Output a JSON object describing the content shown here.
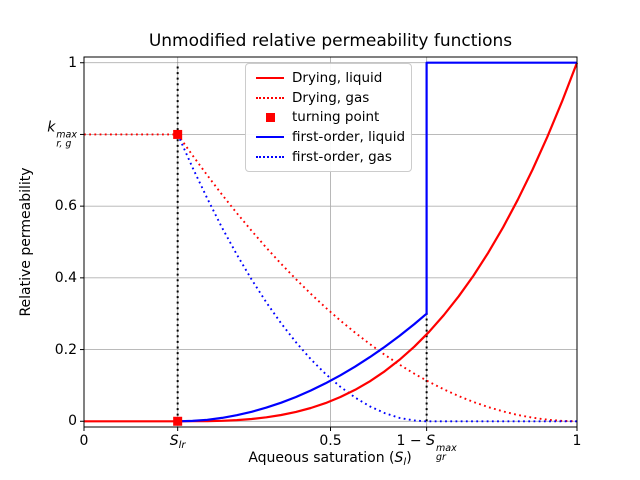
{
  "chart_data": {
    "type": "line",
    "title": "Unmodified relative permeability functions",
    "ylabel": "Relative permeability",
    "xlabel_tokens": [
      {
        "t": "Aqueous saturation ("
      },
      {
        "t": "S",
        "i": true
      },
      {
        "sub": "l"
      },
      {
        "t": ")"
      }
    ],
    "xlim": [
      0,
      1
    ],
    "ylim": [
      -0.016,
      1.016
    ],
    "grid": true,
    "legend_position": "upper center-left inside axes",
    "colors": {
      "drying": "#ff0000",
      "first_order": "#0000ff",
      "grid": "#b0b0b0",
      "guide": "#000000",
      "legend_edge": "#cccccc",
      "spine": "#000000"
    },
    "params": {
      "S_lr": 0.19,
      "one_minus_S_gr_max": 0.695,
      "k_rg_max": 0.8
    },
    "xticks": [
      {
        "v": 0,
        "label": [
          {
            "t": "0"
          }
        ]
      },
      {
        "v": 0.19,
        "label": [
          {
            "t": "S",
            "i": true
          },
          {
            "sub": "lr"
          }
        ]
      },
      {
        "v": 0.5,
        "label": [
          {
            "t": "0.5"
          }
        ]
      },
      {
        "v": 0.695,
        "label": [
          {
            "t": "1 − "
          },
          {
            "t": "S",
            "i": true
          },
          {
            "sup": "max",
            "sub": "gr"
          }
        ]
      },
      {
        "v": 1,
        "label": [
          {
            "t": "1"
          }
        ]
      }
    ],
    "yticks": [
      {
        "v": 0,
        "label": [
          {
            "t": "0"
          }
        ]
      },
      {
        "v": 0.2,
        "label": [
          {
            "t": "0.2"
          }
        ]
      },
      {
        "v": 0.4,
        "label": [
          {
            "t": "0.4"
          }
        ]
      },
      {
        "v": 0.6,
        "label": [
          {
            "t": "0.6"
          }
        ]
      },
      {
        "v": 0.8,
        "label": [
          {
            "t": "k",
            "i": true
          },
          {
            "sup": "max",
            "sub": "r, g"
          }
        ]
      },
      {
        "v": 1,
        "label": [
          {
            "t": "1"
          }
        ]
      }
    ],
    "guides": [
      {
        "x": 0.19,
        "y0": 0,
        "y1": 1.0
      },
      {
        "x": 0.695,
        "y0": 0,
        "y1": 0.305
      }
    ],
    "turning_points": [
      [
        0.19,
        0.8
      ],
      [
        0.19,
        0
      ]
    ],
    "series": [
      {
        "name": "Drying, gas",
        "color": "#ff0000",
        "style": "dotted",
        "points": [
          [
            0,
            0.8
          ],
          [
            0.19,
            0.8
          ],
          [
            0.22,
            0.7418
          ],
          [
            0.25,
            0.6859
          ],
          [
            0.28,
            0.6321
          ],
          [
            0.31,
            0.5805
          ],
          [
            0.34,
            0.5311
          ],
          [
            0.37,
            0.4838
          ],
          [
            0.4,
            0.4389
          ],
          [
            0.43,
            0.3962
          ],
          [
            0.46,
            0.3556
          ],
          [
            0.49,
            0.3171
          ],
          [
            0.52,
            0.2809
          ],
          [
            0.55,
            0.2469
          ],
          [
            0.58,
            0.2151
          ],
          [
            0.61,
            0.1855
          ],
          [
            0.64,
            0.158
          ],
          [
            0.67,
            0.1328
          ],
          [
            0.7,
            0.1097
          ],
          [
            0.73,
            0.0889
          ],
          [
            0.76,
            0.0702
          ],
          [
            0.79,
            0.0538
          ],
          [
            0.82,
            0.0395
          ],
          [
            0.85,
            0.0274
          ],
          [
            0.88,
            0.0176
          ],
          [
            0.91,
            0.0099
          ],
          [
            0.94,
            0.0044
          ],
          [
            0.97,
            0.0011
          ],
          [
            1,
            0
          ]
        ]
      },
      {
        "name": "first-order, gas",
        "color": "#0000ff",
        "style": "dotted",
        "points": [
          [
            0.19,
            0.8
          ],
          [
            0.22,
            0.7078
          ],
          [
            0.25,
            0.6212
          ],
          [
            0.28,
            0.5403
          ],
          [
            0.31,
            0.465
          ],
          [
            0.34,
            0.3953
          ],
          [
            0.37,
            0.3313
          ],
          [
            0.4,
            0.273
          ],
          [
            0.43,
            0.2203
          ],
          [
            0.46,
            0.1732
          ],
          [
            0.49,
            0.1318
          ],
          [
            0.52,
            0.0961
          ],
          [
            0.55,
            0.0659
          ],
          [
            0.58,
            0.0415
          ],
          [
            0.61,
            0.0227
          ],
          [
            0.64,
            0.0095
          ],
          [
            0.67,
            0.002
          ],
          [
            0.695,
            0
          ],
          [
            1,
            0
          ]
        ]
      },
      {
        "name": "Drying, liquid",
        "color": "#ff0000",
        "style": "solid",
        "points": [
          [
            0,
            0
          ],
          [
            0.19,
            0
          ],
          [
            0.22,
            0.0001
          ],
          [
            0.25,
            0.0004
          ],
          [
            0.28,
            0.0014
          ],
          [
            0.31,
            0.0033
          ],
          [
            0.34,
            0.0064
          ],
          [
            0.37,
            0.011
          ],
          [
            0.4,
            0.0174
          ],
          [
            0.43,
            0.026
          ],
          [
            0.46,
            0.037
          ],
          [
            0.49,
            0.0508
          ],
          [
            0.52,
            0.0676
          ],
          [
            0.55,
            0.0878
          ],
          [
            0.58,
            0.1116
          ],
          [
            0.61,
            0.1394
          ],
          [
            0.64,
            0.1715
          ],
          [
            0.67,
            0.2081
          ],
          [
            0.7,
            0.2496
          ],
          [
            0.73,
            0.2963
          ],
          [
            0.76,
            0.3485
          ],
          [
            0.79,
            0.4064
          ],
          [
            0.82,
            0.4705
          ],
          [
            0.85,
            0.541
          ],
          [
            0.88,
            0.6181
          ],
          [
            0.91,
            0.7023
          ],
          [
            0.94,
            0.7938
          ],
          [
            0.97,
            0.8929
          ],
          [
            1,
            1
          ]
        ]
      },
      {
        "name": "first-order, liquid",
        "color": "#0000ff",
        "style": "solid",
        "points": [
          [
            0.19,
            0
          ],
          [
            0.22,
            0.0011
          ],
          [
            0.25,
            0.0042
          ],
          [
            0.28,
            0.0095
          ],
          [
            0.31,
            0.0169
          ],
          [
            0.34,
            0.0265
          ],
          [
            0.37,
            0.0381
          ],
          [
            0.4,
            0.0519
          ],
          [
            0.43,
            0.0678
          ],
          [
            0.46,
            0.0858
          ],
          [
            0.49,
            0.1059
          ],
          [
            0.52,
            0.1281
          ],
          [
            0.55,
            0.1525
          ],
          [
            0.58,
            0.1789
          ],
          [
            0.61,
            0.2075
          ],
          [
            0.64,
            0.2382
          ],
          [
            0.67,
            0.271
          ],
          [
            0.695,
            0.3
          ],
          [
            0.695,
            1
          ],
          [
            1,
            1
          ]
        ]
      }
    ],
    "legend": {
      "entries": [
        {
          "label": "Drying, liquid",
          "color": "#ff0000",
          "kind": "line-solid"
        },
        {
          "label": "Drying, gas",
          "color": "#ff0000",
          "kind": "line-dotted"
        },
        {
          "label": "turning point",
          "color": "#ff0000",
          "kind": "square"
        },
        {
          "label": "first-order, liquid",
          "color": "#0000ff",
          "kind": "line-solid"
        },
        {
          "label": "first-order, gas",
          "color": "#0000ff",
          "kind": "line-dotted"
        }
      ]
    }
  }
}
